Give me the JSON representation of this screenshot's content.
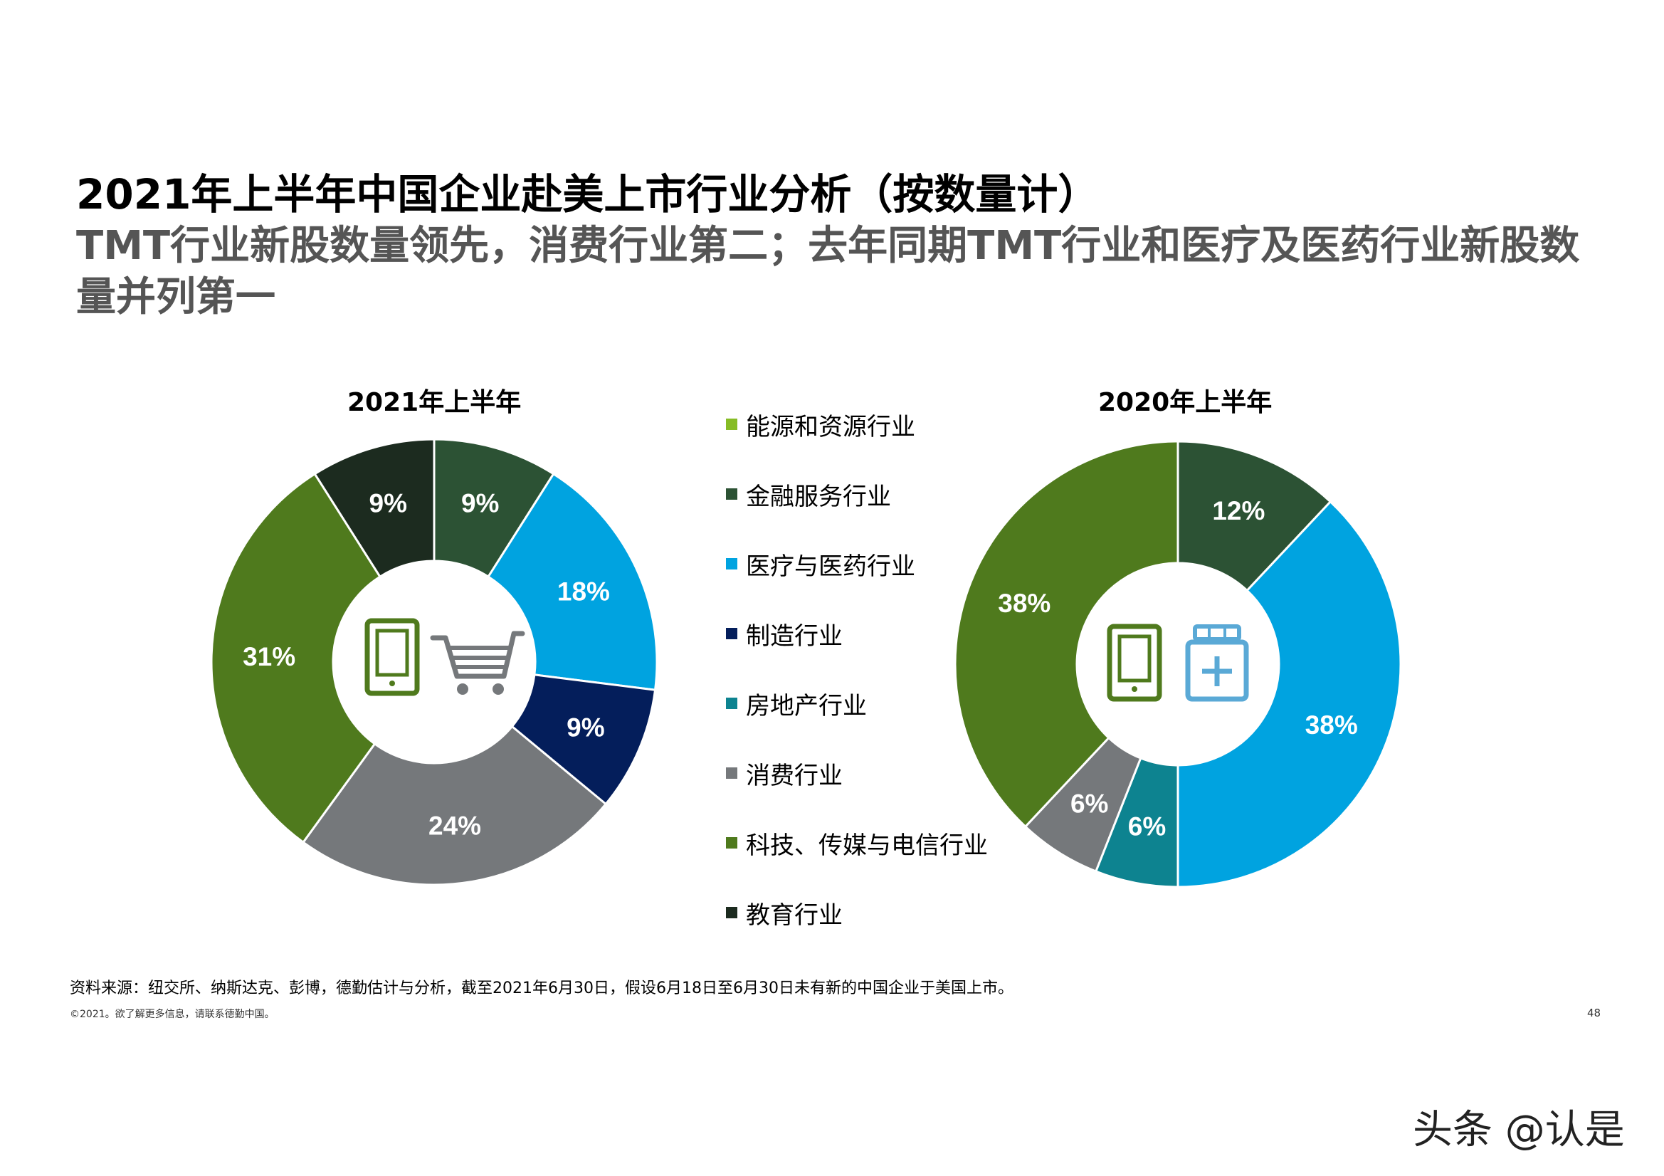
{
  "header": {
    "title": "2021年上半年中国企业赴美上市行业分析（按数量计）",
    "subtitle": "TMT行业新股数量领先，消费行业第二；去年同期TMT行业和医疗及医药行业新股数量并列第一"
  },
  "legend": {
    "items": [
      {
        "label": "能源和资源行业",
        "color": "#86bc25"
      },
      {
        "label": "金融服务行业",
        "color": "#2c5234"
      },
      {
        "label": "医疗与医药行业",
        "color": "#00a3e0"
      },
      {
        "label": "制造行业",
        "color": "#041e5b"
      },
      {
        "label": "房地产行业",
        "color": "#0d8390"
      },
      {
        "label": "消费行业",
        "color": "#75787b"
      },
      {
        "label": "科技、传媒与电信行业",
        "color": "#4f7a1d"
      },
      {
        "label": "教育行业",
        "color": "#1c2b1f"
      }
    ]
  },
  "chart_data": [
    {
      "type": "pie",
      "title": "2021年上半年",
      "center_icons": [
        "tablet-icon",
        "shopping-cart-icon"
      ],
      "slices": [
        {
          "label": "金融服务行业",
          "value": 9,
          "display": "9%",
          "color": "#2c5234"
        },
        {
          "label": "医疗与医药行业",
          "value": 18,
          "display": "18%",
          "color": "#00a3e0"
        },
        {
          "label": "制造行业",
          "value": 9,
          "display": "9%",
          "color": "#041e5b"
        },
        {
          "label": "消费行业",
          "value": 24,
          "display": "24%",
          "color": "#75787b"
        },
        {
          "label": "科技、传媒与电信行业",
          "value": 31,
          "display": "31%",
          "color": "#4f7a1d"
        },
        {
          "label": "教育行业",
          "value": 9,
          "display": "9%",
          "color": "#1c2b1f"
        }
      ]
    },
    {
      "type": "pie",
      "title": "2020年上半年",
      "center_icons": [
        "tablet-icon",
        "medicine-bottle-icon"
      ],
      "slices": [
        {
          "label": "金融服务行业",
          "value": 12,
          "display": "12%",
          "color": "#2c5234"
        },
        {
          "label": "医疗与医药行业",
          "value": 38,
          "display": "38%",
          "color": "#00a3e0"
        },
        {
          "label": "房地产行业",
          "value": 6,
          "display": "6%",
          "color": "#0d8390"
        },
        {
          "label": "消费行业",
          "value": 6,
          "display": "6%",
          "color": "#75787b"
        },
        {
          "label": "科技、传媒与电信行业",
          "value": 38,
          "display": "38%",
          "color": "#4f7a1d"
        }
      ]
    }
  ],
  "footer": {
    "source": "资料来源：纽交所、纳斯达克、彭博，德勤估计与分析，截至2021年6月30日，假设6月18日至6月30日未有新的中国企业于美国上市。",
    "copyright": "©2021。欲了解更多信息，请联系德勤中国。",
    "page_number": "48"
  },
  "watermark": "头条 @认是"
}
